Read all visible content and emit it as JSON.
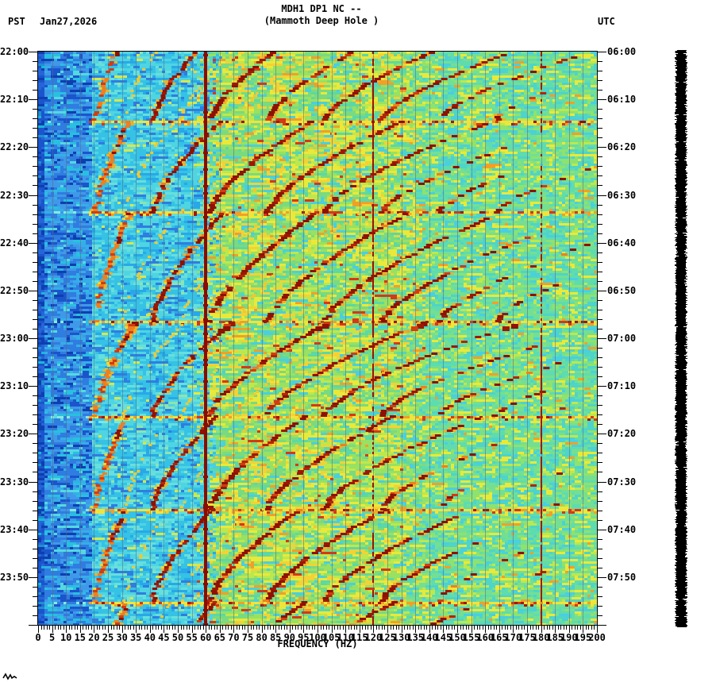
{
  "header": {
    "timezone_left": "PST",
    "date": "Jan27,2026",
    "timezone_right": "UTC"
  },
  "title": {
    "line1": "MDH1 DP1 NC --",
    "line2": "(Mammoth Deep Hole )"
  },
  "axes": {
    "left": {
      "timezone": "PST",
      "labels": [
        "22:00",
        "22:10",
        "22:20",
        "22:30",
        "22:40",
        "22:50",
        "23:00",
        "23:10",
        "23:20",
        "23:30",
        "23:40",
        "23:50"
      ]
    },
    "right": {
      "timezone": "UTC",
      "labels": [
        "06:00",
        "06:10",
        "06:20",
        "06:30",
        "06:40",
        "06:50",
        "07:00",
        "07:10",
        "07:20",
        "07:30",
        "07:40",
        "07:50"
      ]
    },
    "bottom": {
      "label": "FREQUENCY (HZ)",
      "tick_labels": [
        "0",
        "5",
        "10",
        "15",
        "20",
        "25",
        "30",
        "35",
        "40",
        "45",
        "50",
        "55",
        "60",
        "65",
        "70",
        "75",
        "80",
        "85",
        "90",
        "95",
        "100",
        "105",
        "110",
        "115",
        "120",
        "125",
        "130",
        "135",
        "140",
        "145",
        "150",
        "155",
        "160",
        "165",
        "170",
        "175",
        "180",
        "185",
        "190",
        "195",
        "200"
      ]
    }
  },
  "chart_data": {
    "type": "heatmap",
    "title": "MDH1 DP1 NC --",
    "subtitle": "(Mammoth Deep Hole )",
    "date_label": "Jan27,2026",
    "xlabel": "FREQUENCY (HZ)",
    "x_range_hz": [
      0,
      200
    ],
    "x_major_tick_hz": 5,
    "x_minor_tick_hz": 1,
    "y_left": {
      "timezone": "PST",
      "start": "22:00",
      "end": "24:00",
      "label_step_min": 10,
      "minor_tick_min": 2
    },
    "y_right": {
      "timezone": "UTC",
      "start": "06:00",
      "end": "08:00",
      "label_step_min": 10,
      "minor_tick_min": 2
    },
    "grid": {
      "vertical_step_hz": 5,
      "color": "rgba(90,105,135,0.55)"
    },
    "features": {
      "powerline_noise_hz": [
        60,
        120,
        180
      ],
      "powerline_colors": [
        "#8a0c02",
        "#9c1204",
        "#a81808"
      ],
      "event_boundary_minutes": [
        14.3,
        33.6,
        56.5,
        76.1,
        95.7,
        115.0
      ],
      "cycle_top_minutes": [
        -5.3,
        14.3,
        33.6,
        56.5,
        76.1,
        95.7,
        115.0
      ],
      "fundamental_end_hz": 20.5,
      "fundamental_start_hz_min": 31,
      "fundamental_start_hz_span": 4,
      "glide_exponent": 1.45,
      "harmonics": [
        1,
        1.5,
        2,
        2.5,
        3,
        3.5,
        4,
        5,
        6,
        7,
        8,
        9,
        10
      ],
      "heavy_cycle_index": 3
    },
    "palettes": {
      "deep": [
        [
          "#0d3fb0",
          3
        ],
        [
          "#1a55cc",
          4
        ],
        [
          "#2565d8",
          3
        ],
        [
          "#1e8fd0",
          1
        ],
        [
          "#18b8d8",
          0.5
        ]
      ],
      "blue": [
        [
          "#1a55cc",
          2
        ],
        [
          "#2f7de0",
          4
        ],
        [
          "#3f99e8",
          3
        ],
        [
          "#35aee8",
          2
        ],
        [
          "#28c0e0",
          1.5
        ],
        [
          "#55d8e0",
          0.7
        ],
        [
          "#0d3fb0",
          1
        ]
      ],
      "cyan": [
        [
          "#35c2e5",
          4
        ],
        [
          "#4fd4e2",
          3
        ],
        [
          "#28a8e8",
          2
        ],
        [
          "#67dfdc",
          2
        ],
        [
          "#2f7de0",
          1
        ],
        [
          "#8ce4b0",
          0.6
        ],
        [
          "#d8e84a",
          0.3
        ]
      ],
      "green": [
        [
          "#7ada7f",
          3
        ],
        [
          "#98e162",
          3
        ],
        [
          "#bce84e",
          2
        ],
        [
          "#e9e93a",
          2.5
        ],
        [
          "#5cd8a4",
          2
        ],
        [
          "#49cfe0",
          1.2
        ],
        [
          "#f0a028",
          0.45
        ],
        [
          "#d63818",
          0.3
        ],
        [
          "#f2d236",
          1.5
        ]
      ],
      "teal": [
        [
          "#5fdcae",
          3
        ],
        [
          "#74df92",
          3
        ],
        [
          "#8ee26e",
          2
        ],
        [
          "#e9e93a",
          1.6
        ],
        [
          "#4ed4c8",
          2
        ],
        [
          "#bce84e",
          1.2
        ],
        [
          "#f0a028",
          0.2
        ],
        [
          "#49cfe0",
          1
        ]
      ],
      "arc": [
        [
          "#8e1103",
          5
        ],
        [
          "#9c1805",
          2.5
        ],
        [
          "#b32508",
          1.2
        ],
        [
          "#d23c12",
          0.8
        ],
        [
          "#ef7f1e",
          0.4
        ]
      ],
      "streak": [
        [
          "#f2e33a",
          5
        ],
        [
          "#f0a028",
          2
        ],
        [
          "#d63818",
          1.6
        ],
        [
          "#a81505",
          0.8
        ]
      ]
    },
    "trace_bar_color": "#000000"
  }
}
